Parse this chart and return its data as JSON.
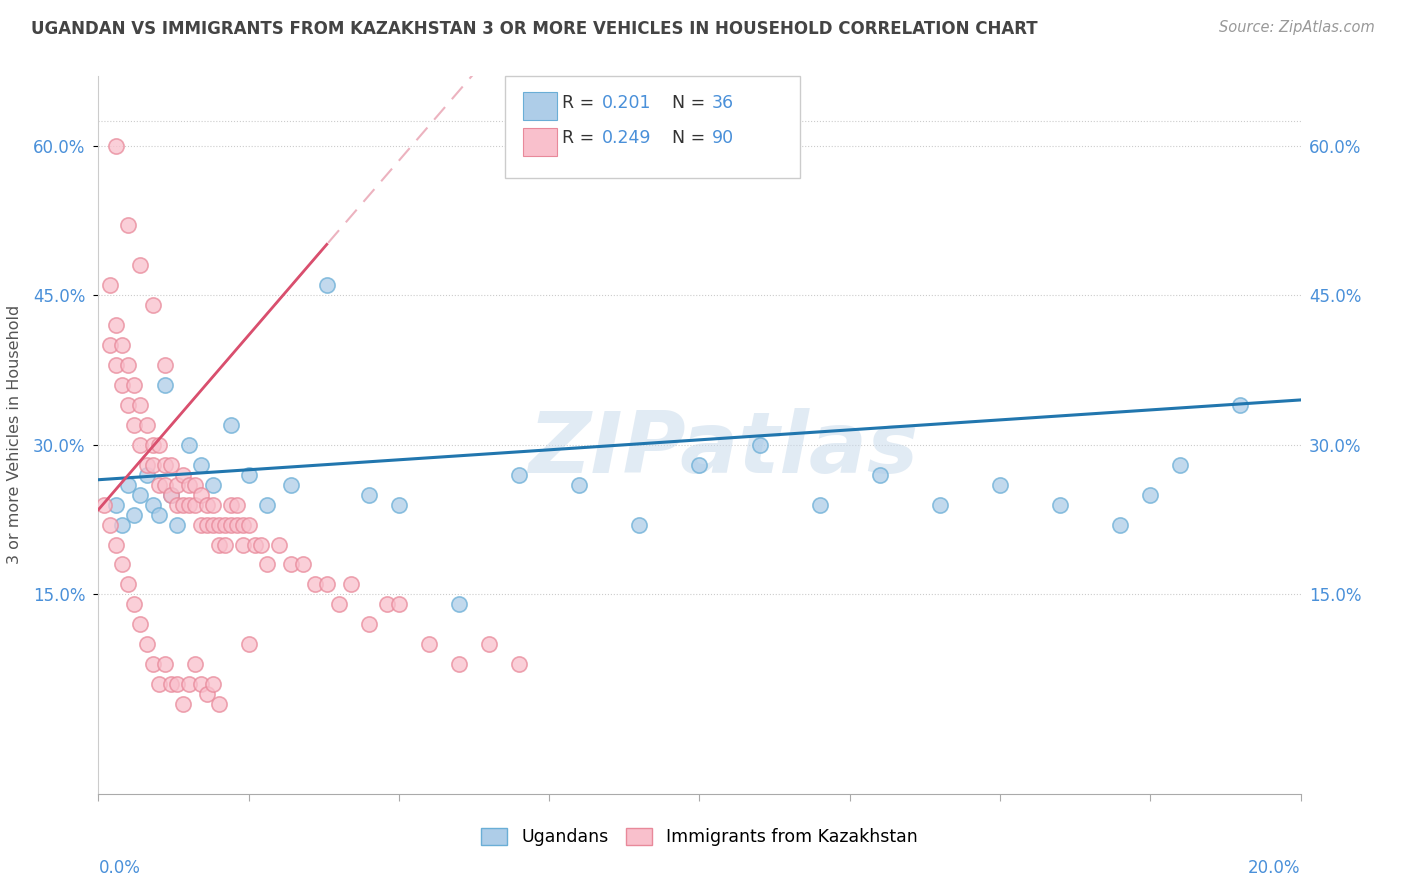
{
  "title": "UGANDAN VS IMMIGRANTS FROM KAZAKHSTAN 3 OR MORE VEHICLES IN HOUSEHOLD CORRELATION CHART",
  "source": "Source: ZipAtlas.com",
  "ylabel": "3 or more Vehicles in Household",
  "ytick_labels": [
    "15.0%",
    "30.0%",
    "45.0%",
    "60.0%"
  ],
  "ytick_values": [
    0.15,
    0.3,
    0.45,
    0.6
  ],
  "xmin": 0.0,
  "xmax": 0.2,
  "ymin": -0.05,
  "ymax": 0.67,
  "legend_r1_val": "0.201",
  "legend_n1_val": "36",
  "legend_r2_val": "0.249",
  "legend_n2_val": "90",
  "blue_fill": "#aecde8",
  "blue_edge": "#6aaed6",
  "pink_fill": "#f9c0cc",
  "pink_edge": "#e8899a",
  "blue_line_color": "#2176ae",
  "pink_line_color": "#d94f6e",
  "pink_dash_color": "#e8a0b0",
  "watermark": "ZIPatlas",
  "watermark_color": "#c5d8ea",
  "label_color": "#4a90d9",
  "grid_color": "#cccccc",
  "title_color": "#444444",
  "source_color": "#999999",
  "blue_x": [
    0.003,
    0.004,
    0.005,
    0.006,
    0.007,
    0.008,
    0.009,
    0.01,
    0.011,
    0.012,
    0.013,
    0.015,
    0.017,
    0.019,
    0.022,
    0.025,
    0.028,
    0.032,
    0.038,
    0.045,
    0.05,
    0.06,
    0.07,
    0.08,
    0.09,
    0.1,
    0.11,
    0.12,
    0.13,
    0.14,
    0.15,
    0.16,
    0.17,
    0.175,
    0.18,
    0.19
  ],
  "blue_y": [
    0.24,
    0.22,
    0.26,
    0.23,
    0.25,
    0.27,
    0.24,
    0.23,
    0.36,
    0.25,
    0.22,
    0.3,
    0.28,
    0.26,
    0.32,
    0.27,
    0.24,
    0.26,
    0.46,
    0.25,
    0.24,
    0.14,
    0.27,
    0.26,
    0.22,
    0.28,
    0.3,
    0.24,
    0.27,
    0.24,
    0.26,
    0.24,
    0.22,
    0.25,
    0.28,
    0.34
  ],
  "pink_x": [
    0.001,
    0.002,
    0.002,
    0.003,
    0.003,
    0.004,
    0.004,
    0.005,
    0.005,
    0.006,
    0.006,
    0.007,
    0.007,
    0.008,
    0.008,
    0.009,
    0.009,
    0.01,
    0.01,
    0.011,
    0.011,
    0.012,
    0.012,
    0.013,
    0.013,
    0.014,
    0.014,
    0.015,
    0.015,
    0.016,
    0.016,
    0.017,
    0.017,
    0.018,
    0.018,
    0.019,
    0.019,
    0.02,
    0.02,
    0.021,
    0.021,
    0.022,
    0.022,
    0.023,
    0.023,
    0.024,
    0.024,
    0.025,
    0.026,
    0.027,
    0.028,
    0.03,
    0.032,
    0.034,
    0.036,
    0.038,
    0.04,
    0.042,
    0.045,
    0.048,
    0.05,
    0.055,
    0.06,
    0.065,
    0.07,
    0.002,
    0.003,
    0.004,
    0.005,
    0.006,
    0.007,
    0.008,
    0.009,
    0.01,
    0.011,
    0.012,
    0.013,
    0.014,
    0.015,
    0.016,
    0.017,
    0.018,
    0.019,
    0.02,
    0.025,
    0.003,
    0.005,
    0.007,
    0.009,
    0.011
  ],
  "pink_y": [
    0.24,
    0.46,
    0.4,
    0.42,
    0.38,
    0.36,
    0.4,
    0.34,
    0.38,
    0.32,
    0.36,
    0.3,
    0.34,
    0.28,
    0.32,
    0.28,
    0.3,
    0.26,
    0.3,
    0.26,
    0.28,
    0.25,
    0.28,
    0.24,
    0.26,
    0.24,
    0.27,
    0.24,
    0.26,
    0.24,
    0.26,
    0.22,
    0.25,
    0.22,
    0.24,
    0.22,
    0.24,
    0.2,
    0.22,
    0.2,
    0.22,
    0.22,
    0.24,
    0.22,
    0.24,
    0.2,
    0.22,
    0.22,
    0.2,
    0.2,
    0.18,
    0.2,
    0.18,
    0.18,
    0.16,
    0.16,
    0.14,
    0.16,
    0.12,
    0.14,
    0.14,
    0.1,
    0.08,
    0.1,
    0.08,
    0.22,
    0.2,
    0.18,
    0.16,
    0.14,
    0.12,
    0.1,
    0.08,
    0.06,
    0.08,
    0.06,
    0.06,
    0.04,
    0.06,
    0.08,
    0.06,
    0.05,
    0.06,
    0.04,
    0.1,
    0.6,
    0.52,
    0.48,
    0.44,
    0.38
  ]
}
